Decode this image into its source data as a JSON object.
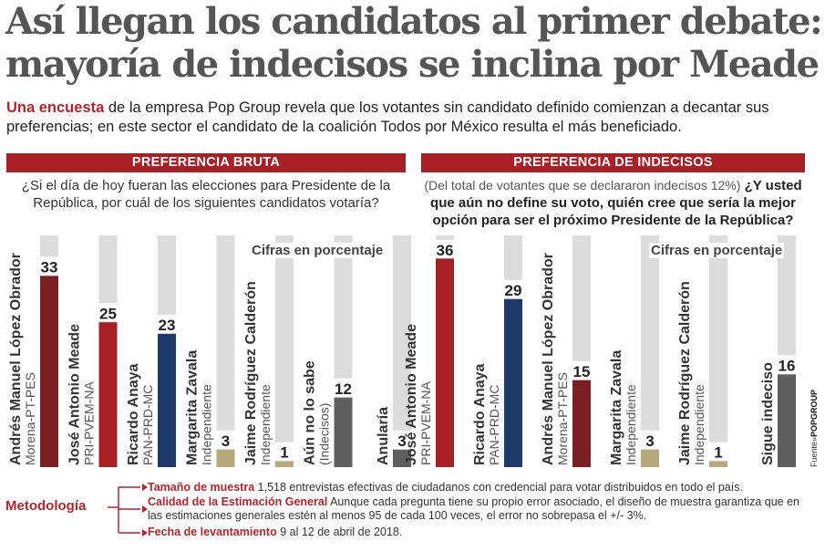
{
  "headline": {
    "line1": "Así llegan los candidatos al primer debate:",
    "line2": "mayoría de indecisos se inclina por Meade"
  },
  "deck": {
    "lead": "Una encuesta",
    "text": " de la empresa Pop Group revela que los votantes sin candidato definido comienzan a decantar sus preferencias; en este sector el candidato de la coalición Todos por México resulta el más beneficiado."
  },
  "colors": {
    "red": "#a91f26",
    "navy": "#1f3a69",
    "olive": "#b7aa7a",
    "gray": "#5f5f5f",
    "background_bar": "#dcdcdc"
  },
  "footer": {
    "fuente_label": "Fuente»",
    "fuente_source": "POPGROUP"
  },
  "methodology": {
    "title": "Metodología",
    "items": [
      {
        "key": "Tamaño de muestra",
        "text": " 1,518 entrevistas efectivas de ciudadanos con credencial para votar distribuidos en todo el país."
      },
      {
        "key": "Calidad de la Estimación General",
        "text": " Aunque cada pregunta tiene su propio error asociado, el diseño de muestra garantiza que en las estimaciones generales estén al menos 95 de cada 100 veces, el error no sobrepasa el +/- 3%."
      },
      {
        "key": "Fecha de levantamiento",
        "text": " 9 al 12 de abril de 2018."
      }
    ]
  },
  "chart_data": [
    {
      "type": "bar",
      "title": "PREFERENCIA BRUTA",
      "question": "¿Si el día de hoy fueran las elecciones para Presidente de la República, por cuál de los siguientes candidatos votaría?",
      "units_note": "Cifras en porcentaje",
      "ylim": [
        0,
        40
      ],
      "categories": [
        {
          "name": "Andrés Manuel López Obrador",
          "parties": "Morena-PT-PES",
          "color": "#7a1f24"
        },
        {
          "name": "José Antonio Meade",
          "parties": "PRI-PVEM-NA",
          "color": "#a91f26"
        },
        {
          "name": "Ricardo Anaya",
          "parties": "PAN-PRD-MC",
          "color": "#1f3a69"
        },
        {
          "name": "Margarita Zavala",
          "parties": "Independiente",
          "color": "#b7aa7a"
        },
        {
          "name": "Jaime Rodríguez Calderón",
          "parties": "Independiente",
          "color": "#b7aa7a"
        },
        {
          "name": "Aún no lo sabe",
          "parties": "(Indecisos)",
          "color": "#5f5f5f"
        },
        {
          "name": "Anularía",
          "parties": "",
          "color": "#5f5f5f"
        }
      ],
      "values": [
        33,
        25,
        23,
        3,
        1,
        12,
        3
      ]
    },
    {
      "type": "bar",
      "title": "PREFERENCIA DE INDECISOS",
      "question_note": "(Del total de votantes que se declararon indecisos 12%)",
      "question": "¿Y usted que aún no define su voto, quién cree que sería la mejor opción para ser el próximo Presidente de la República?",
      "units_note": "Cifras en porcentaje",
      "ylim": [
        0,
        40
      ],
      "categories": [
        {
          "name": "José Antonio Meade",
          "parties": "PRI-PVEM-NA",
          "color": "#a91f26"
        },
        {
          "name": "Ricardo Anaya",
          "parties": "PAN-PRD-MC",
          "color": "#1f3a69"
        },
        {
          "name": "Andrés Manuel López Obrador",
          "parties": "Morena-PT-PES",
          "color": "#7a1f24"
        },
        {
          "name": "Margarita Zavala",
          "parties": "Independiente",
          "color": "#b7aa7a"
        },
        {
          "name": "Jaime Rodríguez Calderón",
          "parties": "Independiente",
          "color": "#b7aa7a"
        },
        {
          "name": "Sigue indeciso",
          "parties": "",
          "color": "#5f5f5f"
        }
      ],
      "values": [
        36,
        29,
        15,
        3,
        1,
        16
      ]
    }
  ]
}
